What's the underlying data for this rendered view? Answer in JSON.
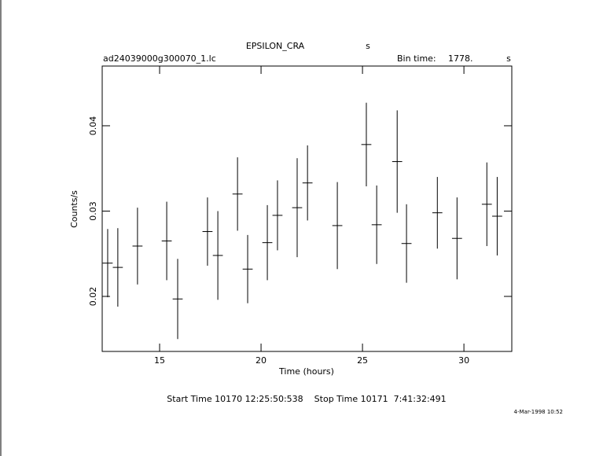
{
  "chart_data": {
    "type": "errorbar",
    "title": "EPSILON_CRA",
    "title_unit": "s",
    "file_name": "ad24039000g300070_1.lc",
    "bin_time_label": "Bin time:",
    "bin_time": {
      "value": 1778,
      "label": "1778."
    },
    "bin_time_unit": "s",
    "x_label": "Time (hours)",
    "y_label": "Counts/s",
    "footer": "Start Time 10170 12:25:50:538    Stop Time 10171  7:41:32:491",
    "date_stamp": "4-Mar-1998 10:52",
    "color": "#000000",
    "x": [
      12.44,
      12.94,
      13.91,
      15.35,
      15.89,
      17.36,
      17.87,
      18.84,
      19.34,
      20.31,
      20.81,
      21.78,
      22.29,
      23.76,
      25.19,
      25.7,
      26.71,
      27.17,
      28.69,
      29.66,
      31.13,
      31.64
    ],
    "values": [
      0.0239,
      0.0234,
      0.0259,
      0.0265,
      0.0197,
      0.0276,
      0.0248,
      0.032,
      0.0232,
      0.0263,
      0.0295,
      0.0304,
      0.0333,
      0.0283,
      0.0378,
      0.0284,
      0.0358,
      0.0262,
      0.0298,
      0.0268,
      0.0308,
      0.0294
    ],
    "errors": [
      0.004,
      0.0046,
      0.0045,
      0.0046,
      0.0047,
      0.004,
      0.0052,
      0.0043,
      0.004,
      0.0044,
      0.0041,
      0.0058,
      0.0044,
      0.0051,
      0.0049,
      0.0046,
      0.006,
      0.0046,
      0.0042,
      0.0048,
      0.0049,
      0.0046
    ],
    "xlim": [
      12.17,
      32.36
    ],
    "ylim": [
      0.01355,
      0.047
    ],
    "xticks": [
      15,
      20,
      25,
      30
    ],
    "yticks": [
      0.02,
      0.03,
      0.04
    ]
  }
}
